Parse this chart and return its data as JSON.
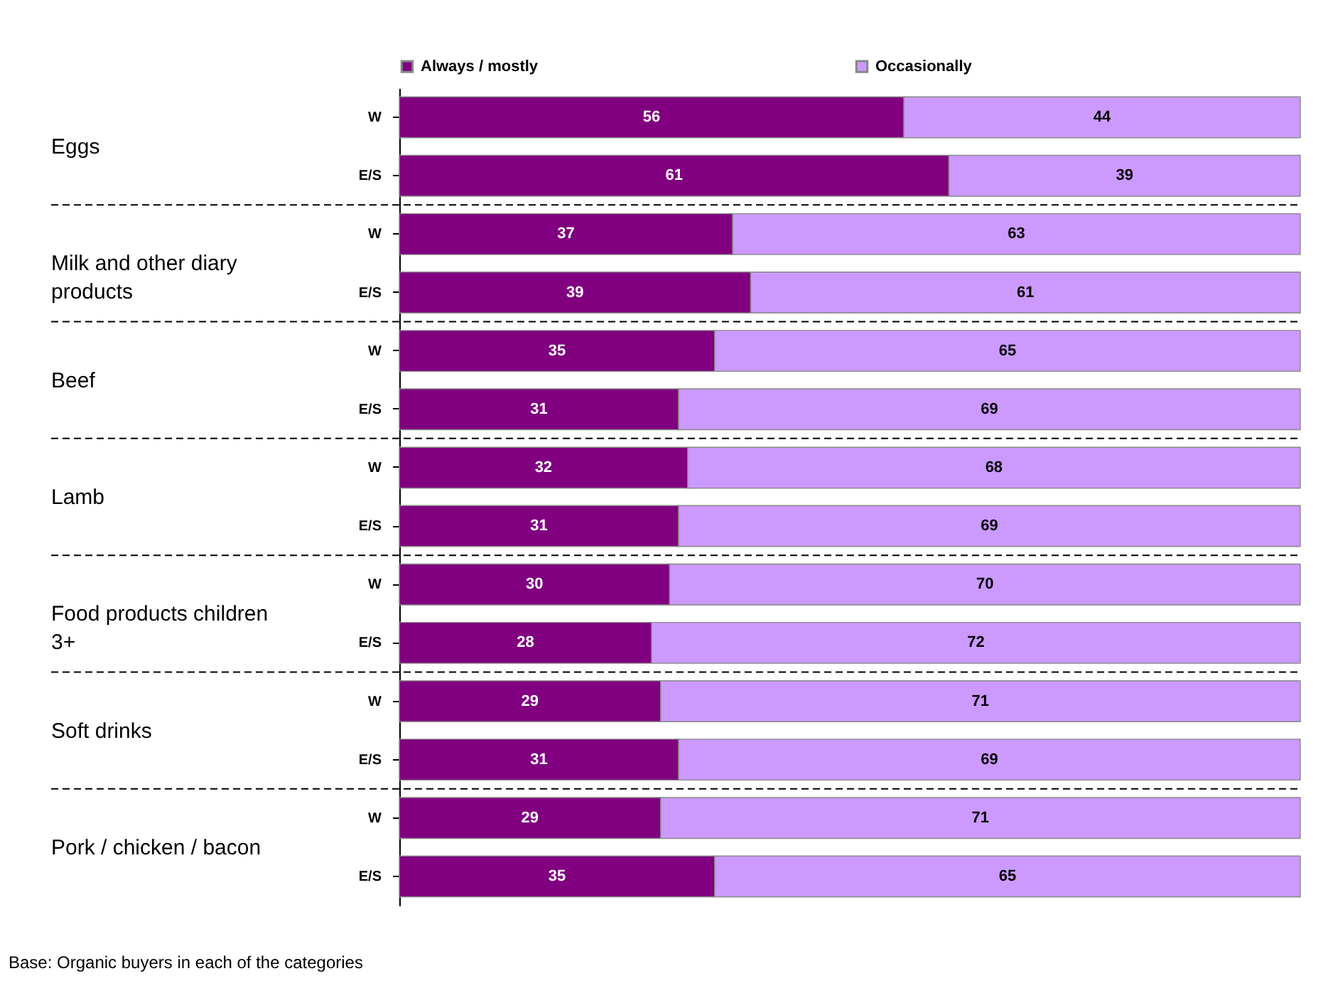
{
  "chart_data": {
    "type": "bar",
    "orientation": "horizontal",
    "stacked": true,
    "data_labels": true,
    "legend": "top",
    "grid": false,
    "categories": [
      "W",
      "E/S",
      "W",
      "E/S",
      "W",
      "E/S",
      "W",
      "E/S",
      "W",
      "E/S",
      "W",
      "E/S",
      "W",
      "E/S"
    ],
    "series": [
      {
        "name": "Always / mostly",
        "color": "#800080",
        "values": [
          56,
          61,
          37,
          39,
          35,
          31,
          32,
          31,
          30,
          28,
          29,
          31,
          29,
          35
        ]
      },
      {
        "name": "Occasionally",
        "color": "#cc99ff",
        "values": [
          44,
          39,
          63,
          61,
          65,
          69,
          68,
          69,
          70,
          72,
          71,
          69,
          71,
          65
        ]
      }
    ],
    "annotations": [
      "Eggs",
      "Milk and other diary products",
      "Beef",
      "Lamb",
      "Food products children 3+",
      "Soft drinks",
      "Pork / chicken / bacon",
      "Base: Organic buyers in each of the categories"
    ]
  }
}
